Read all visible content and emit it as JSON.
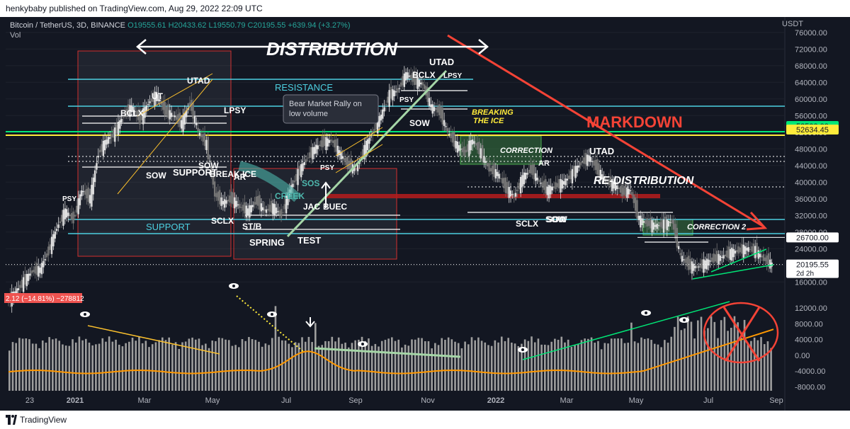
{
  "header": {
    "published": "henkybaby published on TradingView.com, Aug 29, 2022 22:09 UTC"
  },
  "footer": {
    "brand": "TradingView"
  },
  "legend": {
    "symbol": "Bitcoin / TetherUS, 3D, BINANCE",
    "open": "O19555.61",
    "high": "H20433.62",
    "low": "L19550.79",
    "close": "C20195.55",
    "change": "+639.94 (+3.27%)",
    "vol": "Vol",
    "currency": "USDT"
  },
  "chart_data": {
    "type": "candlestick",
    "y_axis_label": "USDT",
    "price_ticks": [
      76000,
      72000,
      68000,
      64000,
      60000,
      56000,
      52000,
      48000,
      44000,
      40000,
      36000,
      32000,
      28000,
      24000,
      20000,
      16000
    ],
    "price_tick_labels": [
      "76000.00",
      "72000.00",
      "68000.00",
      "64000.00",
      "60000.00",
      "56000.00",
      "52000.00",
      "48000.00",
      "44000.00",
      "40000.00",
      "36000.00",
      "32000.00",
      "28000.00",
      "24000.00",
      "20000.00",
      "16000.00"
    ],
    "volume_ticks": [
      12000,
      8000,
      4000,
      0,
      -4000,
      -8000
    ],
    "volume_tick_labels": [
      "12000.00",
      "8000.00",
      "4000.00",
      "0.00",
      "-4000.00",
      "-8000.00"
    ],
    "time_labels": [
      "23",
      "2021",
      "Mar",
      "May",
      "Jul",
      "Sep",
      "Nov",
      "2022",
      "Mar",
      "May",
      "Jul",
      "Sep"
    ],
    "price_series": [
      [
        0,
        11000
      ],
      [
        5,
        13500
      ],
      [
        10,
        16000
      ],
      [
        15,
        18500
      ],
      [
        20,
        19000
      ],
      [
        25,
        23500
      ],
      [
        30,
        29000
      ],
      [
        35,
        33000
      ],
      [
        40,
        31000
      ],
      [
        45,
        38000
      ],
      [
        50,
        36000
      ],
      [
        55,
        47000
      ],
      [
        60,
        50000
      ],
      [
        65,
        52000
      ],
      [
        70,
        56000
      ],
      [
        75,
        58000
      ],
      [
        80,
        55000
      ],
      [
        85,
        59000
      ],
      [
        90,
        61000
      ],
      [
        95,
        57000
      ],
      [
        100,
        56000
      ],
      [
        105,
        54000
      ],
      [
        110,
        59000
      ],
      [
        115,
        52000
      ],
      [
        120,
        49000
      ],
      [
        125,
        37000
      ],
      [
        130,
        35000
      ],
      [
        135,
        36000
      ],
      [
        140,
        34000
      ],
      [
        145,
        33000
      ],
      [
        150,
        35500
      ],
      [
        155,
        33000
      ],
      [
        160,
        34000
      ],
      [
        165,
        32000
      ],
      [
        170,
        38000
      ],
      [
        175,
        42000
      ],
      [
        180,
        45500
      ],
      [
        185,
        48000
      ],
      [
        190,
        49500
      ],
      [
        195,
        50000
      ],
      [
        200,
        47000
      ],
      [
        205,
        44000
      ],
      [
        210,
        43000
      ],
      [
        215,
        48000
      ],
      [
        220,
        52000
      ],
      [
        225,
        56000
      ],
      [
        230,
        61000
      ],
      [
        235,
        62000
      ],
      [
        240,
        66000
      ],
      [
        245,
        64500
      ],
      [
        250,
        63500
      ],
      [
        255,
        58000
      ],
      [
        260,
        57000
      ],
      [
        265,
        52000
      ],
      [
        270,
        49000
      ],
      [
        275,
        47000
      ],
      [
        280,
        50000
      ],
      [
        285,
        47000
      ],
      [
        290,
        43000
      ],
      [
        295,
        42000
      ],
      [
        300,
        38500
      ],
      [
        305,
        36500
      ],
      [
        310,
        41000
      ],
      [
        315,
        43000
      ],
      [
        320,
        40000
      ],
      [
        325,
        38000
      ],
      [
        330,
        39000
      ],
      [
        335,
        40000
      ],
      [
        340,
        42000
      ],
      [
        345,
        44500
      ],
      [
        350,
        46000
      ],
      [
        355,
        43000
      ],
      [
        360,
        40000
      ],
      [
        365,
        39500
      ],
      [
        370,
        37500
      ],
      [
        375,
        38000
      ],
      [
        380,
        31000
      ],
      [
        385,
        30000
      ],
      [
        390,
        29500
      ],
      [
        395,
        29800
      ],
      [
        400,
        30500
      ],
      [
        405,
        22000
      ],
      [
        410,
        20000
      ],
      [
        415,
        19500
      ],
      [
        420,
        20500
      ],
      [
        425,
        21500
      ],
      [
        430,
        22000
      ],
      [
        435,
        23000
      ],
      [
        440,
        23500
      ],
      [
        445,
        24000
      ],
      [
        450,
        23500
      ],
      [
        455,
        21500
      ],
      [
        460,
        20195
      ]
    ],
    "horizontal_levels": [
      {
        "label": "53500.00",
        "value": 53500,
        "color": "#00e676"
      },
      {
        "label": "52634.45",
        "value": 52634,
        "color": "#ffeb3b"
      },
      {
        "label": "26700.00",
        "value": 26700,
        "color": "#ffffff"
      },
      {
        "label": "20195.55",
        "value": 20195,
        "color": "#ffffff",
        "sub": "2d 2h"
      }
    ],
    "value_badge_left": "2.12 (−14.81%) −278812",
    "annotations": {
      "distribution": "DISTRIBUTION",
      "markdown": "MARKDOWN",
      "redistribution": "RE-DISTRIBUTION",
      "resistance": "RESISTANCE",
      "support_low": "SUPPORT",
      "support_mid": "SUPPORT",
      "breaking_ice": "BREAKING THE ICE",
      "correction1": "CORRECTION",
      "correction2": "CORRECTION 2",
      "creek": "CREEK",
      "bear_rally": "Bear Market Rally on low volume",
      "labels": [
        {
          "t": "PSY"
        },
        {
          "t": "BCLX"
        },
        {
          "t": "UT"
        },
        {
          "t": "UTAD"
        },
        {
          "t": "LPSY"
        },
        {
          "t": "SOW"
        },
        {
          "t": "SUPPORT"
        },
        {
          "t": "SOW"
        },
        {
          "t": "SOW"
        },
        {
          "t": "BREAK ICE"
        },
        {
          "t": "AR"
        },
        {
          "t": "SCLX"
        },
        {
          "t": "ST/B"
        },
        {
          "t": "SPRING"
        },
        {
          "t": "TEST"
        },
        {
          "t": "SOS"
        },
        {
          "t": "JAC"
        },
        {
          "t": "BUEC"
        },
        {
          "t": "PSY"
        },
        {
          "t": "UTAD"
        },
        {
          "t": "BCLX"
        },
        {
          "t": "LPSY"
        },
        {
          "t": "PSY"
        },
        {
          "t": "SOW"
        },
        {
          "t": "UTAD"
        },
        {
          "t": "AR"
        },
        {
          "t": "SCLX"
        },
        {
          "t": "SOW"
        }
      ]
    },
    "volume_ma_color": "#ff9800"
  }
}
